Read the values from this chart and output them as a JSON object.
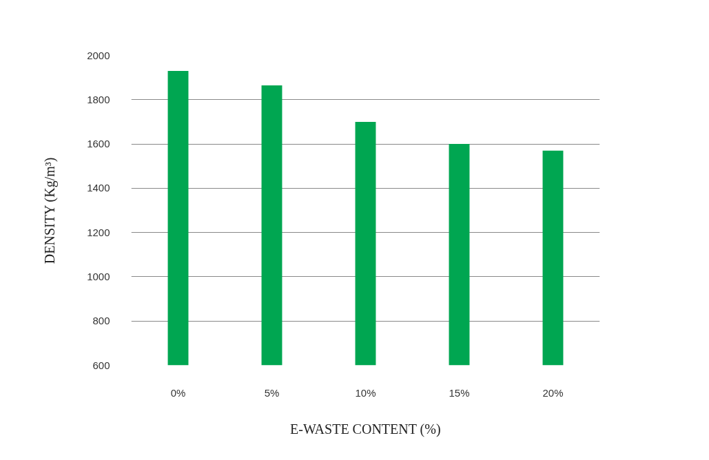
{
  "chart_data": {
    "type": "bar",
    "xlabel": "E-WASTE CONTENT (%)",
    "ylabel": "DENSITY (Kg/m³)",
    "categories": [
      "0%",
      "5%",
      "10%",
      "15%",
      "20%"
    ],
    "values": [
      1930,
      1865,
      1700,
      1600,
      1570
    ],
    "color": "#00a651",
    "ylim": [
      600,
      2000
    ],
    "yticks": [
      600,
      800,
      1000,
      1200,
      1400,
      1600,
      1800,
      2000
    ],
    "grid": "y"
  }
}
